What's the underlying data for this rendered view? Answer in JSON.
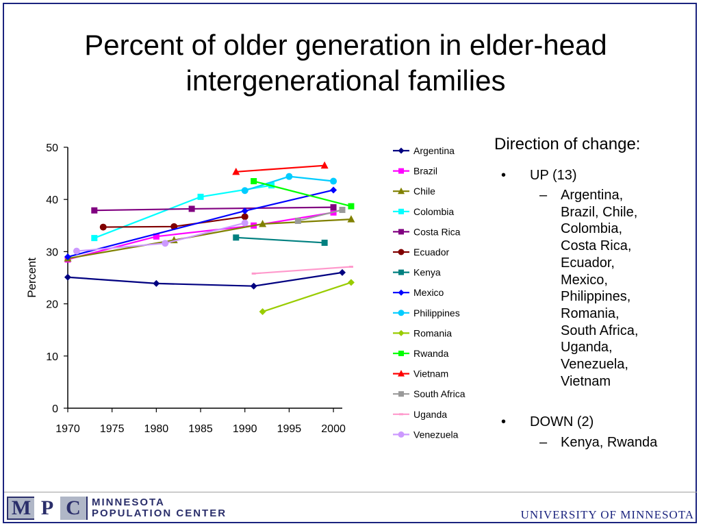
{
  "title": {
    "line1": "Percent of older generation in elder-head",
    "line2": "intergenerational families"
  },
  "side": {
    "heading": "Direction of change:",
    "up": {
      "label": "UP (13)",
      "lines": [
        "Argentina,",
        "Brazil, Chile,",
        "Colombia,",
        "Costa Rica,",
        "Ecuador,",
        "Mexico,",
        "Philippines,",
        "Romania,",
        "South Africa,",
        "Uganda,",
        "Venezuela,",
        "Vietnam"
      ]
    },
    "down": {
      "label": "DOWN (2)",
      "lines": [
        "Kenya, Rwanda"
      ]
    }
  },
  "footer": {
    "logo_letters": [
      "M",
      "P",
      "C"
    ],
    "logo_line1": "MINNESOTA",
    "logo_line2": "POPULATION CENTER",
    "university": "UNIVERSITY OF MINNESOTA"
  },
  "chart_data": {
    "type": "line",
    "ylabel": "Percent",
    "xlabel": "",
    "xlim": [
      1970,
      2001
    ],
    "ylim": [
      0,
      50
    ],
    "xticks": [
      1970,
      1975,
      1980,
      1985,
      1990,
      1995,
      2000
    ],
    "yticks": [
      0,
      10,
      20,
      30,
      40,
      50
    ],
    "legend_position": "right",
    "series": [
      {
        "name": "Argentina",
        "color": "#000080",
        "marker": "diamond",
        "points": [
          [
            1970,
            25.1
          ],
          [
            1980,
            23.9
          ],
          [
            1991,
            23.4
          ],
          [
            2001,
            26.0
          ]
        ]
      },
      {
        "name": "Brazil",
        "color": "#FF00FF",
        "marker": "square",
        "points": [
          [
            1970,
            28.5
          ],
          [
            1980,
            32.9
          ],
          [
            1991,
            35.0
          ],
          [
            2000,
            37.5
          ]
        ]
      },
      {
        "name": "Chile",
        "color": "#808000",
        "marker": "triangle",
        "points": [
          [
            1970,
            28.7
          ],
          [
            1982,
            32.2
          ],
          [
            1992,
            35.3
          ],
          [
            2002,
            36.2
          ]
        ]
      },
      {
        "name": "Colombia",
        "color": "#00FFFF",
        "marker": "square",
        "points": [
          [
            1973,
            32.6
          ],
          [
            1985,
            40.5
          ],
          [
            1993,
            42.7
          ]
        ]
      },
      {
        "name": "Costa Rica",
        "color": "#800080",
        "marker": "square",
        "points": [
          [
            1973,
            37.9
          ],
          [
            1984,
            38.2
          ],
          [
            2000,
            38.5
          ]
        ]
      },
      {
        "name": "Ecuador",
        "color": "#800000",
        "marker": "circle",
        "points": [
          [
            1974,
            34.7
          ],
          [
            1982,
            34.8
          ],
          [
            1990,
            36.7
          ]
        ]
      },
      {
        "name": "Kenya",
        "color": "#008080",
        "marker": "square",
        "points": [
          [
            1989,
            32.7
          ],
          [
            1999,
            31.7
          ]
        ]
      },
      {
        "name": "Mexico",
        "color": "#0000FF",
        "marker": "diamond",
        "points": [
          [
            1970,
            29.0
          ],
          [
            1990,
            37.8
          ],
          [
            2000,
            41.8
          ]
        ]
      },
      {
        "name": "Philippines",
        "color": "#00CCFF",
        "marker": "circle",
        "points": [
          [
            1990,
            41.7
          ],
          [
            1995,
            44.4
          ],
          [
            2000,
            43.5
          ]
        ]
      },
      {
        "name": "Romania",
        "color": "#99CC00",
        "marker": "diamond",
        "points": [
          [
            1992,
            18.5
          ],
          [
            2002,
            24.1
          ]
        ]
      },
      {
        "name": "Rwanda",
        "color": "#00FF00",
        "marker": "square",
        "points": [
          [
            1991,
            43.5
          ],
          [
            2002,
            38.7
          ]
        ]
      },
      {
        "name": "Vietnam",
        "color": "#FF0000",
        "marker": "triangle",
        "points": [
          [
            1989,
            45.3
          ],
          [
            1999,
            46.5
          ]
        ]
      },
      {
        "name": "South Africa",
        "color": "#999999",
        "marker": "square",
        "points": [
          [
            1996,
            35.9
          ],
          [
            2001,
            38.0
          ]
        ]
      },
      {
        "name": "Uganda",
        "color": "#FF99CC",
        "marker": "dash",
        "points": [
          [
            1991,
            25.8
          ],
          [
            2002,
            27.1
          ]
        ]
      },
      {
        "name": "Venezuela",
        "color": "#CC99FF",
        "marker": "circle",
        "points": [
          [
            1971,
            30.1
          ],
          [
            1981,
            31.6
          ],
          [
            1990,
            35.5
          ]
        ]
      }
    ]
  }
}
